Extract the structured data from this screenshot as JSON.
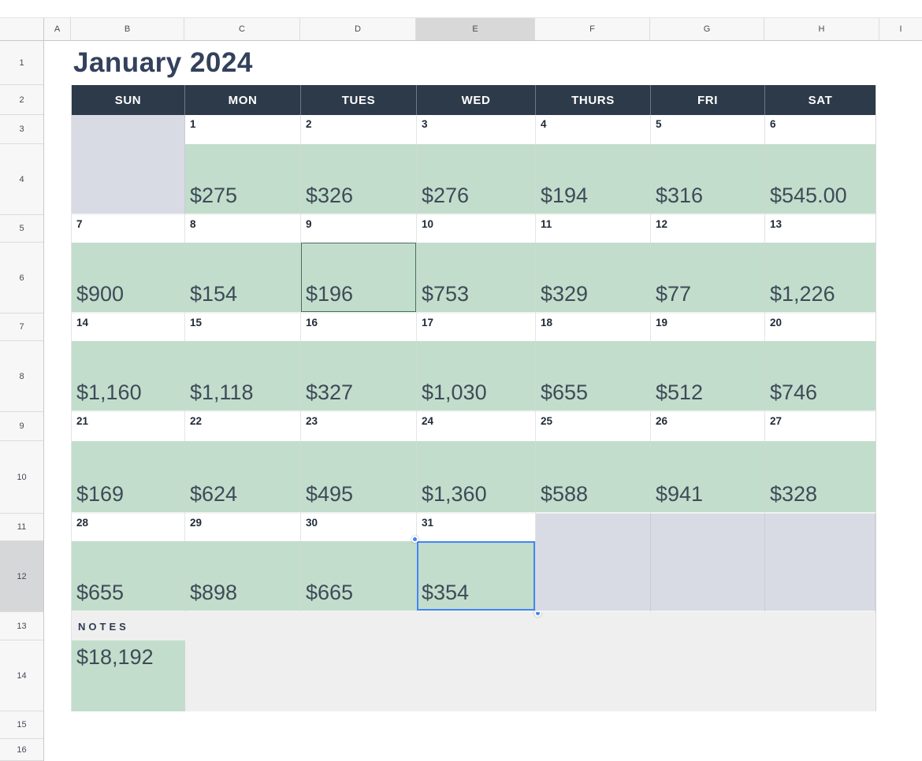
{
  "sheet": {
    "column_headers": [
      "A",
      "B",
      "C",
      "D",
      "E",
      "F",
      "G",
      "H",
      "I"
    ],
    "row_headers": [
      "1",
      "2",
      "3",
      "4",
      "5",
      "6",
      "7",
      "8",
      "9",
      "10",
      "11",
      "12",
      "13",
      "14",
      "15",
      "16"
    ],
    "selected_column": "E",
    "selected_row": "12"
  },
  "calendar": {
    "title": "January 2024",
    "day_headers": [
      "SUN",
      "MON",
      "TUES",
      "WED",
      "THURS",
      "FRI",
      "SAT"
    ],
    "weeks": [
      {
        "cells": [
          {
            "day": "",
            "value": ""
          },
          {
            "day": "1",
            "value": "$275"
          },
          {
            "day": "2",
            "value": "$326"
          },
          {
            "day": "3",
            "value": "$276"
          },
          {
            "day": "4",
            "value": "$194"
          },
          {
            "day": "5",
            "value": "$316"
          },
          {
            "day": "6",
            "value": "$545.00"
          }
        ]
      },
      {
        "cells": [
          {
            "day": "7",
            "value": "$900"
          },
          {
            "day": "8",
            "value": "$154"
          },
          {
            "day": "9",
            "value": "$196"
          },
          {
            "day": "10",
            "value": "$753"
          },
          {
            "day": "11",
            "value": "$329"
          },
          {
            "day": "12",
            "value": "$77"
          },
          {
            "day": "13",
            "value": "$1,226"
          }
        ]
      },
      {
        "cells": [
          {
            "day": "14",
            "value": "$1,160"
          },
          {
            "day": "15",
            "value": "$1,118"
          },
          {
            "day": "16",
            "value": "$327"
          },
          {
            "day": "17",
            "value": "$1,030"
          },
          {
            "day": "18",
            "value": "$655"
          },
          {
            "day": "19",
            "value": "$512"
          },
          {
            "day": "20",
            "value": "$746"
          }
        ]
      },
      {
        "cells": [
          {
            "day": "21",
            "value": "$169"
          },
          {
            "day": "22",
            "value": "$624"
          },
          {
            "day": "23",
            "value": "$495"
          },
          {
            "day": "24",
            "value": "$1,360"
          },
          {
            "day": "25",
            "value": "$588"
          },
          {
            "day": "26",
            "value": "$941"
          },
          {
            "day": "27",
            "value": "$328"
          }
        ]
      },
      {
        "cells": [
          {
            "day": "28",
            "value": "$655"
          },
          {
            "day": "29",
            "value": "$898"
          },
          {
            "day": "30",
            "value": "$665"
          },
          {
            "day": "31",
            "value": "$354"
          },
          {
            "day": "",
            "value": ""
          },
          {
            "day": "",
            "value": ""
          },
          {
            "day": "",
            "value": ""
          }
        ]
      }
    ],
    "notes_label": "NOTES",
    "monthly_total": "$18,192"
  },
  "selection": {
    "type": "cell-selection",
    "week_index": 4,
    "cell_index": 3,
    "value": "$354",
    "color": "#4285f4"
  },
  "highlight": {
    "type": "cell-outline",
    "week_index": 1,
    "cell_index": 2,
    "value": "$196",
    "color": "#44705a"
  },
  "colors": {
    "header_bar": "#2d3a49",
    "value_cell_green": "#c2ddcc",
    "empty_cell_grey": "#d9dbe4",
    "notes_row_grey": "#efefef",
    "title_text": "#33415c",
    "value_text": "#3e4b57",
    "selection_blue": "#4285f4",
    "outline_green": "#44705a"
  }
}
